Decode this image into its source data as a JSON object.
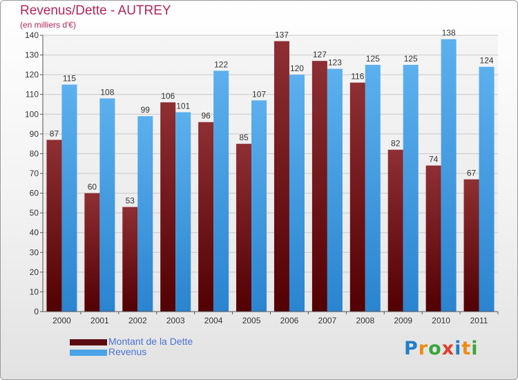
{
  "chart_data": {
    "type": "bar",
    "title": "Revenus/Dette - AUTREY",
    "subtitle": "(en milliers d'€)",
    "categories": [
      "2000",
      "2001",
      "2002",
      "2003",
      "2004",
      "2005",
      "2006",
      "2007",
      "2008",
      "2009",
      "2010",
      "2011"
    ],
    "series": [
      {
        "name": "Montant de la Dette",
        "color": "#7a1a1e",
        "values": [
          87,
          60,
          53,
          106,
          96,
          85,
          137,
          127,
          116,
          82,
          74,
          67
        ]
      },
      {
        "name": "Revenus",
        "color": "#4aa3e6",
        "values": [
          115,
          108,
          99,
          101,
          122,
          107,
          120,
          123,
          125,
          125,
          138,
          124
        ]
      }
    ],
    "ylim": [
      0,
      140
    ],
    "yticks": [
      0,
      10,
      20,
      30,
      40,
      50,
      60,
      70,
      80,
      90,
      100,
      110,
      120,
      130,
      140
    ],
    "grid": true,
    "legend": "bottom-left"
  },
  "legend": {
    "debt_label": "Montant de la Dette",
    "revenue_label": "Revenus",
    "debt_color": "#5a0c10",
    "revenue_color": "#4aa3e6"
  },
  "logo": {
    "letters": [
      {
        "ch": "P",
        "color": "#1f7fc9"
      },
      {
        "ch": "r",
        "color": "#f08a12"
      },
      {
        "ch": "o",
        "color": "#3aa63a"
      },
      {
        "ch": "x",
        "color": "#e23c2a"
      },
      {
        "ch": "i",
        "color": "#1f7fc9"
      },
      {
        "ch": "t",
        "color": "#f08a12"
      },
      {
        "ch": "i",
        "color": "#3aa63a"
      }
    ]
  }
}
